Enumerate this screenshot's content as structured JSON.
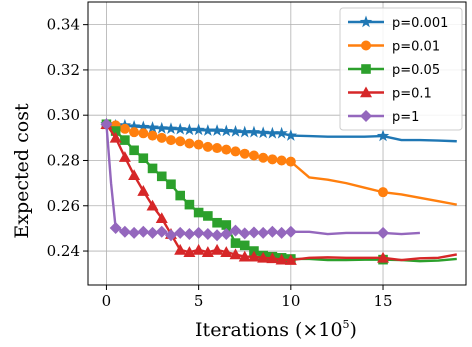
{
  "chart_data": {
    "type": "line",
    "xlabel": "Iterations (×10",
    "xlabel_exp": "5",
    "xlabel_close": ")",
    "ylabel": "Expected cost",
    "xlim": [
      -1,
      19.5
    ],
    "ylim": [
      0.225,
      0.35
    ],
    "xticks": [
      0,
      5,
      10,
      15
    ],
    "yticks": [
      0.24,
      0.26,
      0.28,
      0.3,
      0.32,
      0.34
    ],
    "ytick_labels": [
      "0.24",
      "0.26",
      "0.28",
      "0.30",
      "0.32",
      "0.34"
    ],
    "grid": true,
    "legend_position": "top-right",
    "series": [
      {
        "name": "p=0.001",
        "color": "#1f77b4",
        "marker": "star",
        "marker_x": [
          0,
          0.5,
          1,
          1.5,
          2,
          2.5,
          3,
          3.5,
          4,
          4.5,
          5,
          5.5,
          6,
          6.5,
          7,
          7.5,
          8,
          8.5,
          9,
          9.5,
          10,
          15
        ],
        "x": [
          0,
          0.5,
          1,
          1.5,
          2,
          2.5,
          3,
          3.5,
          4,
          4.5,
          5,
          5.5,
          6,
          6.5,
          7,
          7.5,
          8,
          8.5,
          9,
          9.5,
          10,
          11,
          12,
          13,
          14,
          15,
          16,
          17,
          18,
          19
        ],
        "y": [
          0.296,
          0.2955,
          0.2955,
          0.295,
          0.2948,
          0.2945,
          0.2942,
          0.294,
          0.2938,
          0.2935,
          0.2935,
          0.2932,
          0.2932,
          0.293,
          0.2928,
          0.2925,
          0.2925,
          0.2922,
          0.292,
          0.292,
          0.291,
          0.2908,
          0.2905,
          0.2905,
          0.2905,
          0.2908,
          0.289,
          0.289,
          0.2888,
          0.2885
        ]
      },
      {
        "name": "p=0.01",
        "color": "#ff7f0e",
        "marker": "circle",
        "marker_x": [
          0,
          0.5,
          1,
          1.5,
          2,
          2.5,
          3,
          3.5,
          4,
          4.5,
          5,
          5.5,
          6,
          6.5,
          7,
          7.5,
          8,
          8.5,
          9,
          9.5,
          10,
          15
        ],
        "x": [
          0,
          0.5,
          1,
          1.5,
          2,
          2.5,
          3,
          3.5,
          4,
          4.5,
          5,
          5.5,
          6,
          6.5,
          7,
          7.5,
          8,
          8.5,
          9,
          9.5,
          10,
          11,
          12,
          13,
          14,
          15,
          16,
          17,
          18,
          19
        ],
        "y": [
          0.296,
          0.2955,
          0.294,
          0.2925,
          0.292,
          0.291,
          0.29,
          0.289,
          0.2885,
          0.2875,
          0.287,
          0.286,
          0.2855,
          0.2848,
          0.284,
          0.283,
          0.2822,
          0.2812,
          0.2805,
          0.28,
          0.2795,
          0.2725,
          0.2715,
          0.27,
          0.268,
          0.266,
          0.265,
          0.2635,
          0.262,
          0.2605
        ]
      },
      {
        "name": "p=0.05",
        "color": "#2ca02c",
        "marker": "square",
        "marker_x": [
          0,
          0.5,
          1,
          1.5,
          2,
          2.5,
          3,
          3.5,
          4,
          4.5,
          5,
          5.5,
          6,
          6.5,
          7,
          7.5,
          8,
          8.5,
          9,
          9.5,
          10,
          15
        ],
        "x": [
          0,
          0.5,
          1,
          1.5,
          2,
          2.5,
          3,
          3.5,
          4,
          4.5,
          5,
          5.5,
          6,
          6.5,
          7,
          7.5,
          8,
          8.5,
          9,
          9.5,
          10,
          11,
          12,
          13,
          14,
          15,
          16,
          17,
          18,
          19
        ],
        "y": [
          0.296,
          0.293,
          0.289,
          0.2845,
          0.281,
          0.2765,
          0.273,
          0.2695,
          0.2645,
          0.2605,
          0.257,
          0.2555,
          0.2525,
          0.2515,
          0.2435,
          0.2425,
          0.24,
          0.238,
          0.2375,
          0.237,
          0.2365,
          0.2365,
          0.236,
          0.236,
          0.2362,
          0.2362,
          0.236,
          0.2355,
          0.2358,
          0.2365
        ]
      },
      {
        "name": "p=0.1",
        "color": "#d62728",
        "marker": "triangle",
        "marker_x": [
          0,
          0.5,
          1,
          1.5,
          2,
          2.5,
          3,
          3.5,
          4,
          4.5,
          5,
          5.5,
          6,
          6.5,
          7,
          7.5,
          8,
          8.5,
          9,
          9.5,
          10,
          15
        ],
        "x": [
          0,
          0.5,
          1,
          1.5,
          2,
          2.5,
          3,
          3.5,
          4,
          4.5,
          5,
          5.5,
          6,
          6.5,
          7,
          7.5,
          8,
          8.5,
          9,
          9.5,
          10,
          11,
          12,
          13,
          14,
          15,
          16,
          17,
          18,
          19
        ],
        "y": [
          0.296,
          0.29,
          0.2815,
          0.2735,
          0.2665,
          0.26,
          0.2545,
          0.2475,
          0.2405,
          0.2395,
          0.2405,
          0.2395,
          0.2405,
          0.2395,
          0.2385,
          0.2375,
          0.2375,
          0.237,
          0.2368,
          0.2362,
          0.236,
          0.237,
          0.2372,
          0.237,
          0.237,
          0.237,
          0.236,
          0.2368,
          0.237,
          0.2385
        ]
      },
      {
        "name": "p=1",
        "color": "#9467bd",
        "marker": "diamond",
        "marker_x": [
          0,
          0.5,
          1,
          1.5,
          2,
          2.5,
          3,
          3.5,
          4,
          4.5,
          5,
          5.5,
          6,
          6.5,
          7,
          7.5,
          8,
          8.5,
          9,
          9.5,
          10,
          15
        ],
        "x": [
          0,
          0.25,
          0.5,
          1,
          1.5,
          2,
          2.5,
          3,
          3.5,
          4,
          4.5,
          5,
          5.5,
          6,
          6.5,
          7,
          7.5,
          8,
          8.5,
          9,
          9.5,
          10,
          11,
          12,
          13,
          14,
          15,
          16,
          17
        ],
        "y": [
          0.296,
          0.27,
          0.2502,
          0.2485,
          0.248,
          0.2485,
          0.248,
          0.2485,
          0.247,
          0.248,
          0.2475,
          0.248,
          0.2475,
          0.247,
          0.2475,
          0.249,
          0.2478,
          0.2482,
          0.248,
          0.2485,
          0.248,
          0.2485,
          0.2485,
          0.2475,
          0.248,
          0.248,
          0.248,
          0.2475,
          0.248
        ]
      }
    ]
  }
}
